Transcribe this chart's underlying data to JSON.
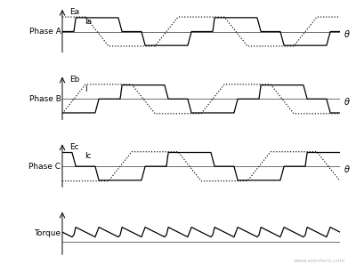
{
  "phases": [
    "Phase A",
    "Phase B",
    "Phase C"
  ],
  "torque_label": "Torque",
  "theta_label": "θ",
  "emf_labels": [
    "Ea",
    "Eb",
    "Ec"
  ],
  "current_labels": [
    "Ia",
    "I",
    "Ic"
  ],
  "period": 6.0,
  "bg_color": "#ffffff",
  "line_color": "#000000",
  "emf_phase_offsets": [
    0.0,
    2.0,
    4.0
  ],
  "cur_phase_offsets": [
    0.5,
    2.5,
    4.5
  ]
}
